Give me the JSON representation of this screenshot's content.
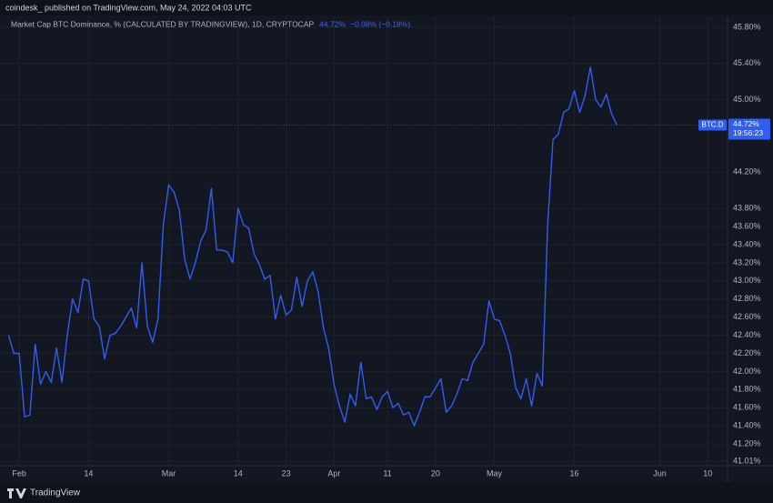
{
  "header": {
    "publisher": "coindesk_ published on TradingView.com, May 24, 2022 04:03 UTC"
  },
  "footer": {
    "brand": "TradingView"
  },
  "chart_data": {
    "type": "line",
    "series": [
      {
        "name": "Market Cap BTC Dominance, % (CALCULATED BY TRADINGVIEW), 1D, CRYPTOCAP",
        "color": "#2f5ef0",
        "values": [
          42.4,
          42.2,
          42.2,
          41.5,
          41.52,
          42.3,
          41.86,
          42.0,
          41.88,
          42.26,
          41.88,
          42.4,
          42.8,
          42.65,
          43.02,
          43.0,
          42.58,
          42.5,
          42.14,
          42.4,
          42.42,
          42.5,
          42.6,
          42.7,
          42.48,
          43.2,
          42.5,
          42.32,
          42.58,
          43.62,
          44.06,
          43.98,
          43.78,
          43.24,
          43.02,
          43.2,
          43.44,
          43.56,
          44.02,
          43.34,
          43.34,
          43.32,
          43.2,
          43.8,
          43.62,
          43.58,
          43.3,
          43.18,
          43.02,
          43.06,
          42.58,
          42.84,
          42.62,
          42.68,
          43.04,
          42.72,
          43.0,
          43.1,
          42.88,
          42.48,
          42.25,
          41.85,
          41.62,
          41.44,
          41.75,
          41.62,
          42.1,
          41.7,
          41.72,
          41.58,
          41.72,
          41.78,
          41.6,
          41.65,
          41.52,
          41.55,
          41.4,
          41.55,
          41.72,
          41.72,
          41.82,
          41.92,
          41.55,
          41.62,
          41.75,
          41.92,
          41.9,
          42.1,
          42.2,
          42.3,
          42.78,
          42.58,
          42.56,
          42.4,
          42.2,
          41.82,
          41.7,
          41.92,
          41.62,
          41.98,
          41.84,
          43.62,
          44.56,
          44.62,
          44.86,
          44.9,
          45.1,
          44.86,
          45.04,
          45.36,
          45.0,
          44.92,
          45.06,
          44.84,
          44.72
        ]
      }
    ],
    "x": [
      30,
      31,
      32,
      33,
      34,
      35,
      36,
      37,
      38,
      39,
      40,
      41,
      42,
      43,
      44,
      45,
      46,
      47,
      48,
      49,
      50,
      51,
      52,
      53,
      54,
      55,
      56,
      57,
      58,
      59,
      60,
      61,
      62,
      63,
      64,
      65,
      66,
      67,
      68,
      69,
      70,
      71,
      72,
      73,
      74,
      75,
      76,
      77,
      78,
      79,
      80,
      81,
      82,
      83,
      84,
      85,
      86,
      87,
      88,
      89,
      90,
      91,
      92,
      93,
      94,
      95,
      96,
      97,
      98,
      99,
      100,
      101,
      102,
      103,
      104,
      105,
      106,
      107,
      108,
      109,
      110,
      111,
      112,
      113,
      114,
      115,
      116,
      117,
      118,
      119,
      120,
      121,
      122,
      123,
      124,
      125,
      126,
      127,
      128,
      129,
      130,
      131,
      132,
      133,
      134,
      135,
      136,
      137,
      138,
      139,
      140,
      141,
      142,
      143,
      144
    ],
    "legend_value": "44.72%",
    "legend_change": "−0.08% (−0.18%)",
    "price_label": {
      "symbol": "BTC.D",
      "value": "44.72%",
      "countdown": "19:56:23"
    },
    "xlim": [
      28.4,
      164.7
    ],
    "xticks": [
      {
        "value": 32,
        "label": "Feb"
      },
      {
        "value": 45,
        "label": "14"
      },
      {
        "value": 60,
        "label": "Mar"
      },
      {
        "value": 73,
        "label": "14"
      },
      {
        "value": 82,
        "label": "23"
      },
      {
        "value": 91,
        "label": "Apr"
      },
      {
        "value": 101,
        "label": "11"
      },
      {
        "value": 110,
        "label": "20"
      },
      {
        "value": 121,
        "label": "May"
      },
      {
        "value": 136,
        "label": "16"
      },
      {
        "value": 152,
        "label": "Jun"
      },
      {
        "value": 161,
        "label": "10"
      }
    ],
    "ylim": [
      40.96,
      45.92
    ],
    "yticks": [
      {
        "value": 41.01,
        "label": "41.01%"
      },
      {
        "value": 41.2,
        "label": "41.20%"
      },
      {
        "value": 41.4,
        "label": "41.40%"
      },
      {
        "value": 41.6,
        "label": "41.60%"
      },
      {
        "value": 41.8,
        "label": "41.80%"
      },
      {
        "value": 42.0,
        "label": "42.00%"
      },
      {
        "value": 42.2,
        "label": "42.20%"
      },
      {
        "value": 42.4,
        "label": "42.40%"
      },
      {
        "value": 42.6,
        "label": "42.60%"
      },
      {
        "value": 42.8,
        "label": "42.80%"
      },
      {
        "value": 43.0,
        "label": "43.00%"
      },
      {
        "value": 43.2,
        "label": "43.20%"
      },
      {
        "value": 43.4,
        "label": "43.40%"
      },
      {
        "value": 43.6,
        "label": "43.60%"
      },
      {
        "value": 43.8,
        "label": "43.80%"
      },
      {
        "value": 44.2,
        "label": "44.20%"
      },
      {
        "value": 45.0,
        "label": "45.00%"
      },
      {
        "value": 45.4,
        "label": "45.40%"
      },
      {
        "value": 45.8,
        "label": "45.80%"
      }
    ],
    "grid": true
  }
}
